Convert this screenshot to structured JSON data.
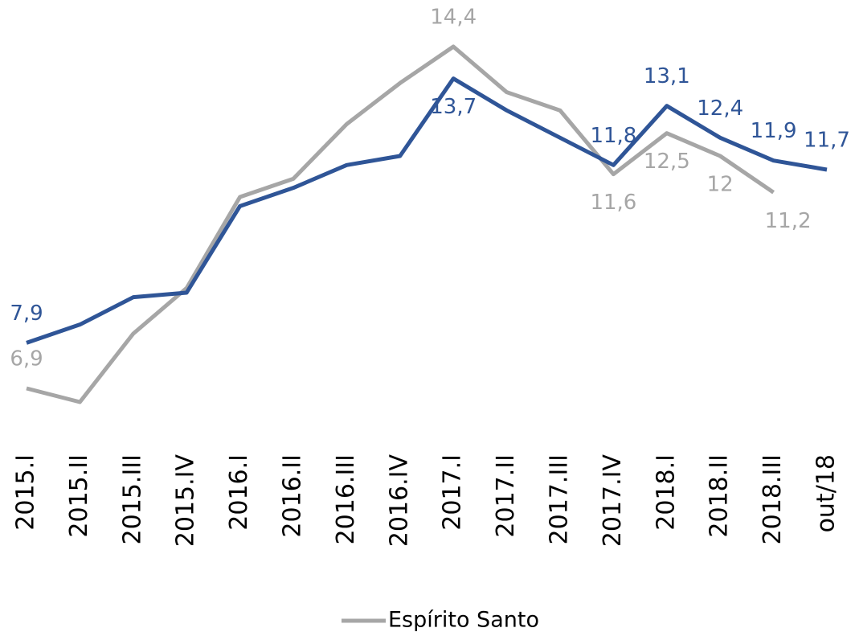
{
  "chart_data": {
    "type": "line",
    "categories": [
      "2015.I",
      "2015.II",
      "2015.III",
      "2015.IV",
      "2016.I",
      "2016.II",
      "2016.III",
      "2016.IV",
      "2017.I",
      "2017.II",
      "2017.III",
      "2017.IV",
      "2018.I",
      "2018.II",
      "2018.III",
      "out/18"
    ],
    "series": [
      {
        "name": "Espírito Santo",
        "color": "#a6a6a6",
        "values": [
          6.9,
          6.6,
          8.1,
          9.1,
          11.1,
          11.5,
          12.7,
          13.6,
          14.4,
          13.4,
          13.0,
          11.6,
          12.5,
          12.0,
          11.2,
          null
        ],
        "value_labels": [
          "6,9",
          null,
          null,
          null,
          null,
          null,
          null,
          null,
          "14,4",
          null,
          null,
          "11,6",
          "12,5",
          "12",
          "11,2",
          null
        ]
      },
      {
        "color": "#2f5597",
        "values": [
          7.9,
          8.3,
          8.9,
          9.0,
          10.9,
          11.3,
          11.8,
          12.0,
          13.7,
          13.0,
          12.4,
          11.8,
          13.1,
          12.4,
          11.9,
          11.7
        ],
        "value_labels": [
          "7,9",
          null,
          null,
          null,
          null,
          null,
          null,
          null,
          "13,7",
          null,
          null,
          "11,8",
          "13,1",
          "12,4",
          "11,9",
          "11,7"
        ]
      }
    ],
    "legend": "bottom"
  }
}
